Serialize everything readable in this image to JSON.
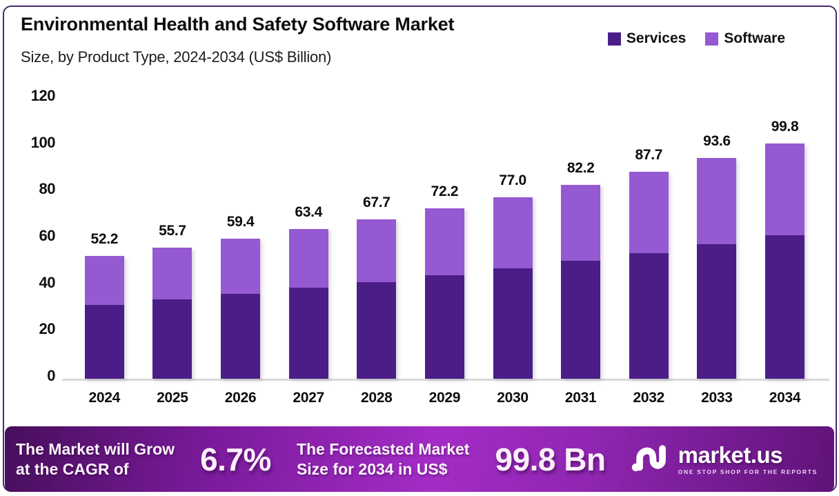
{
  "header": {
    "title": "Environmental Health and Safety Software Market",
    "subtitle": "Size, by Product Type, 2024-2034 (US$ Billion)"
  },
  "legend": {
    "items": [
      {
        "label": "Services",
        "color": "#4B1E87"
      },
      {
        "label": "Software",
        "color": "#9559D2"
      }
    ]
  },
  "chart_data": {
    "type": "bar",
    "stacked": true,
    "title": "Environmental Health and Safety Software Market",
    "subtitle": "Size, by Product Type, 2024-2034 (US$ Billion)",
    "categories": [
      "2024",
      "2025",
      "2026",
      "2027",
      "2028",
      "2029",
      "2030",
      "2031",
      "2032",
      "2033",
      "2034"
    ],
    "series": [
      {
        "name": "Services",
        "color": "#4B1E87",
        "values": [
          31.3,
          33.6,
          36.0,
          38.5,
          41.1,
          43.9,
          46.9,
          50.1,
          53.4,
          57.0,
          60.8
        ]
      },
      {
        "name": "Software",
        "color": "#9559D2",
        "values": [
          20.9,
          22.1,
          23.4,
          24.9,
          26.6,
          28.3,
          30.1,
          32.1,
          34.3,
          36.6,
          39.0
        ]
      }
    ],
    "totals": [
      52.2,
      55.7,
      59.4,
      63.4,
      67.7,
      72.2,
      77.0,
      82.2,
      87.7,
      93.6,
      99.8
    ],
    "total_labels": [
      "52.2",
      "55.7",
      "59.4",
      "63.4",
      "67.7",
      "72.2",
      "77.0",
      "82.2",
      "87.7",
      "93.6",
      "99.8"
    ],
    "xlabel": "",
    "ylabel": "",
    "ylim": [
      0,
      120
    ],
    "yticks": [
      0,
      20,
      40,
      60,
      80,
      100,
      120
    ],
    "grid": false,
    "legend_position": "top-right"
  },
  "banner": {
    "cagr_lines": [
      "The Market will Grow",
      "at the CAGR of"
    ],
    "cagr_value": "6.7%",
    "forecast_lines": [
      "The Forecasted Market",
      "Size for 2034 in US$"
    ],
    "forecast_value": "99.8 Bn",
    "brand": {
      "name": "market.us",
      "tagline": "ONE STOP SHOP FOR THE REPORTS"
    }
  },
  "colors": {
    "services": "#4B1E87",
    "software": "#9559D2",
    "axis_line": "#D9D9D9",
    "frame_border": "#452A6E",
    "banner_gradient": [
      "#470E5C",
      "#A32CC6",
      "#5F1378"
    ]
  }
}
